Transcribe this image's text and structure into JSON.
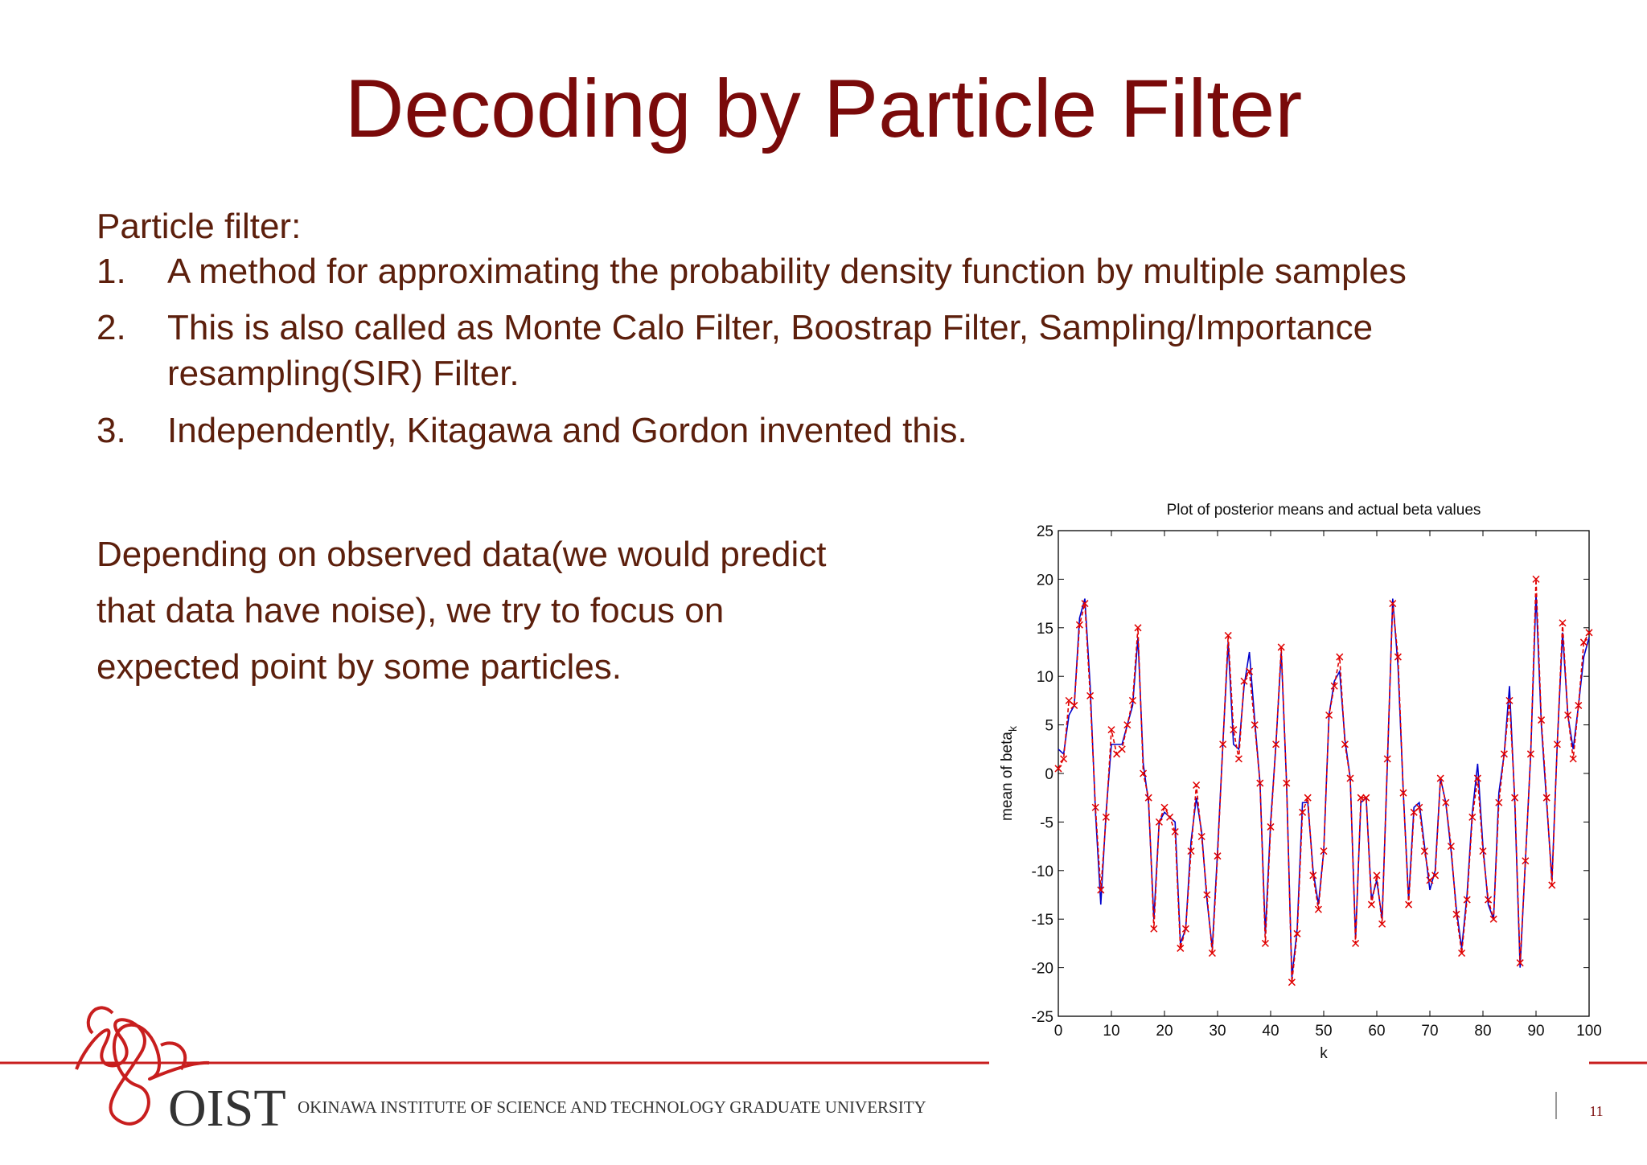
{
  "slide": {
    "title": "Decoding by Particle Filter",
    "intro": "Particle filter:",
    "items": [
      {
        "number": "1.",
        "lines": [
          "A method for approximating the probability density function by multiple samples"
        ]
      },
      {
        "number": "2.",
        "lines": [
          "This is also called as Monte Calo Filter, Boostrap Filter, Sampling/Importance",
          "resampling(SIR) Filter."
        ]
      },
      {
        "number": "3.",
        "lines": [
          "Independently, Kitagawa and Gordon invented this."
        ]
      }
    ],
    "paragraph": [
      "Depending on observed data(we would predict",
      "that data have noise), we try to focus on",
      "expected point by some particles."
    ],
    "logo": "OIST",
    "institution": "OKINAWA INSTITUTE OF SCIENCE AND TECHNOLOGY GRADUATE UNIVERSITY",
    "page_number": "11"
  },
  "chart_data": {
    "type": "line",
    "title": "Plot of posterior means and actual beta values",
    "xlabel": "k",
    "ylabel": "mean of beta",
    "ylabel_subscript": "k",
    "x": [
      0,
      1,
      2,
      3,
      4,
      5,
      6,
      7,
      8,
      9,
      10,
      11,
      12,
      13,
      14,
      15,
      16,
      17,
      18,
      19,
      20,
      21,
      22,
      23,
      24,
      25,
      26,
      27,
      28,
      29,
      30,
      31,
      32,
      33,
      34,
      35,
      36,
      37,
      38,
      39,
      40,
      41,
      42,
      43,
      44,
      45,
      46,
      47,
      48,
      49,
      50,
      51,
      52,
      53,
      54,
      55,
      56,
      57,
      58,
      59,
      60,
      61,
      62,
      63,
      64,
      65,
      66,
      67,
      68,
      69,
      70,
      71,
      72,
      73,
      74,
      75,
      76,
      77,
      78,
      79,
      80,
      81,
      82,
      83,
      84,
      85,
      86,
      87,
      88,
      89,
      90,
      91,
      92,
      93,
      94,
      95,
      96,
      97,
      98,
      99,
      100
    ],
    "series": [
      {
        "color": "#0000cc",
        "style": "solid",
        "values": [
          2.5,
          2,
          6,
          7,
          16,
          18,
          9,
          -4,
          -13.5,
          -4,
          3,
          3,
          3,
          5,
          7,
          14,
          1,
          -3,
          -15,
          -5,
          -4,
          -4.5,
          -5,
          -17.5,
          -16,
          -7,
          -2.5,
          -6,
          -13,
          -18,
          -8,
          3,
          13.5,
          3,
          2.5,
          9,
          12.5,
          5.5,
          -1,
          -16.5,
          -5,
          3,
          12.5,
          -1,
          -21,
          -16,
          -3,
          -3,
          -10,
          -13.5,
          -8,
          6,
          9.5,
          10.5,
          3.5,
          -0.5,
          -17,
          -3,
          -2.5,
          -13,
          -11,
          -15,
          1,
          18,
          11,
          -2,
          -13,
          -3.5,
          -3,
          -7.5,
          -12,
          -10,
          -0.5,
          -3,
          -8,
          -14,
          -18,
          -12.5,
          -4,
          1,
          -7.5,
          -13.5,
          -15,
          -2,
          2,
          9,
          -3,
          -20,
          -9,
          2,
          18.5,
          5,
          -3,
          -11,
          3,
          14.5,
          6,
          2.5,
          7,
          12,
          14
        ]
      },
      {
        "color": "#e00000",
        "style": "dashed",
        "marker": "x",
        "values": [
          0.5,
          1.5,
          7.5,
          7,
          15.3,
          17.5,
          8,
          -3.5,
          -12,
          -4.5,
          4.5,
          2,
          2.5,
          5,
          7.5,
          15,
          0,
          -2.5,
          -16,
          -5,
          -3.5,
          -4.5,
          -6,
          -18,
          -16,
          -8,
          -1.2,
          -6.5,
          -12.5,
          -18.5,
          -8.5,
          3,
          14.2,
          4.5,
          1.5,
          9.5,
          10.5,
          5,
          -1,
          -17.5,
          -5.5,
          3,
          13,
          -1,
          -21.5,
          -16.5,
          -4,
          -2.5,
          -10.5,
          -14,
          -8,
          6,
          9,
          12,
          3,
          -0.5,
          -17.5,
          -2.5,
          -2.5,
          -13.5,
          -10.5,
          -15.5,
          1.5,
          17.5,
          12,
          -2,
          -13.5,
          -4,
          -3.5,
          -8,
          -11,
          -10.5,
          -0.5,
          -3,
          -7.5,
          -14.5,
          -18.5,
          -13,
          -4.5,
          -0.5,
          -8,
          -13,
          -15,
          -3,
          2,
          7.5,
          -2.5,
          -19.5,
          -9,
          2,
          20,
          5.5,
          -2.5,
          -11.5,
          3,
          15.5,
          6,
          1.5,
          7,
          13.5,
          14.5
        ]
      }
    ],
    "xlim": [
      0,
      100
    ],
    "ylim": [
      -25,
      25
    ],
    "xticks": [
      0,
      10,
      20,
      30,
      40,
      50,
      60,
      70,
      80,
      90,
      100
    ],
    "yticks": [
      -25,
      -20,
      -15,
      -10,
      -5,
      0,
      5,
      10,
      15,
      20,
      25
    ]
  }
}
